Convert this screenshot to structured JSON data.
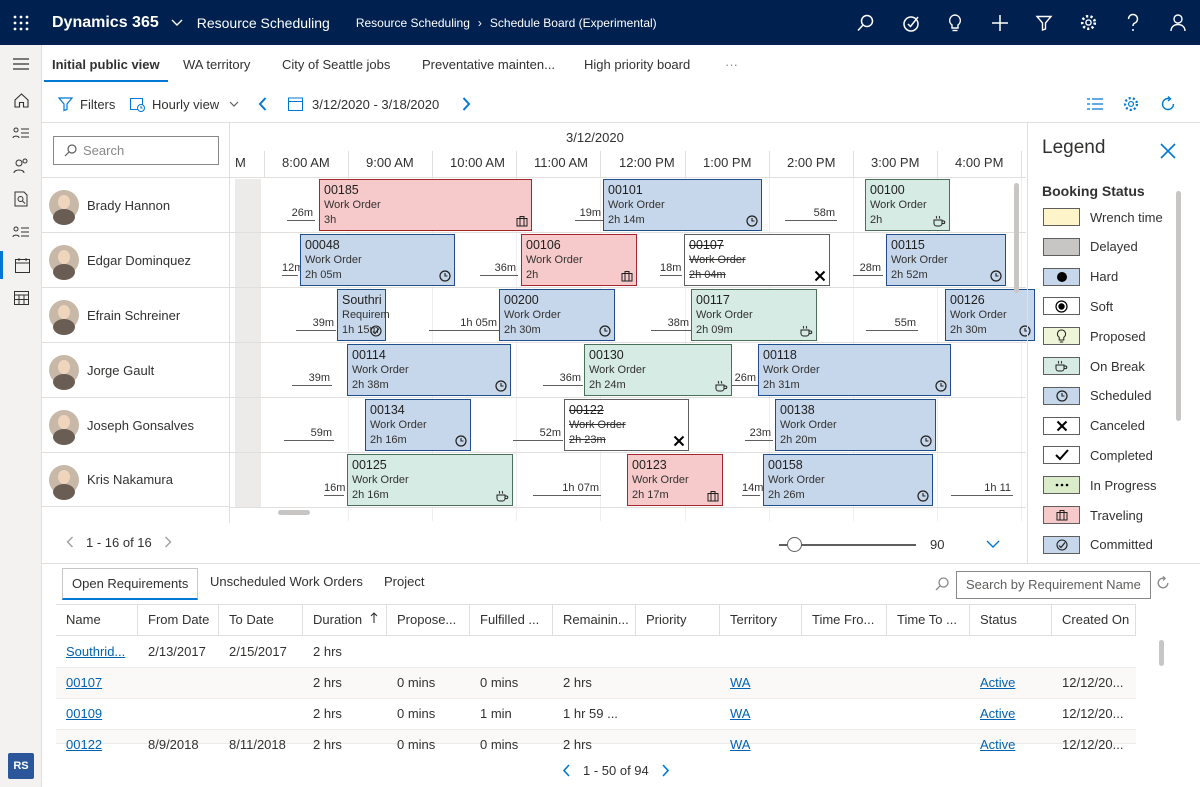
{
  "topbar": {
    "brand": "Dynamics 365",
    "app": "Resource Scheduling",
    "breadcrumb": [
      "Resource Scheduling",
      "Schedule Board (Experimental)"
    ],
    "icons": [
      "search-icon",
      "task-icon",
      "lightbulb-icon",
      "plus-icon",
      "filter-icon",
      "gear-icon",
      "help-icon",
      "user-icon"
    ]
  },
  "leftnav": {
    "badge": "RS"
  },
  "tabs": [
    "Initial public view",
    "WA territory",
    "City of Seattle jobs",
    "Preventative mainten...",
    "High priority board",
    "···"
  ],
  "toolbar": {
    "filters": "Filters",
    "view": "Hourly view",
    "date_range": "3/12/2020 - 3/18/2020"
  },
  "resources": {
    "search_placeholder": "Search",
    "items": [
      "Brady Hannon",
      "Edgar Dominquez",
      "Efrain Schreiner",
      "Jorge Gault",
      "Joseph Gonsalves",
      "Kris Nakamura"
    ],
    "pager": "1 - 16 of 16"
  },
  "board": {
    "date": "3/12/2020",
    "hours": [
      "M",
      "8:00 AM",
      "9:00 AM",
      "10:00 AM",
      "11:00 AM",
      "12:00 PM",
      "1:00 PM",
      "2:00 PM",
      "3:00 PM",
      "4:00 PM"
    ],
    "zoom": "90",
    "rows": [
      {
        "travel": [
          {
            "label": "26m"
          },
          {
            "label": "19m"
          },
          {
            "label": "58m"
          }
        ],
        "bookings": [
          {
            "id": "00185",
            "type": "Work Order",
            "duration": "3h",
            "status": "traveling"
          },
          {
            "id": "00101",
            "type": "Work Order",
            "duration": "2h 14m",
            "status": "scheduled"
          },
          {
            "id": "00100",
            "type": "Work Order",
            "duration": "2h",
            "status": "on-break"
          }
        ]
      },
      {
        "travel": [
          {
            "label": "12m"
          },
          {
            "label": "36m"
          },
          {
            "label": "18m"
          },
          {
            "label": "28m"
          }
        ],
        "bookings": [
          {
            "id": "00048",
            "type": "Work Order",
            "duration": "2h 05m",
            "status": "scheduled"
          },
          {
            "id": "00106",
            "type": "Work Order",
            "duration": "2h",
            "status": "traveling"
          },
          {
            "id": "00107",
            "type": "Work Order",
            "duration": "2h 04m",
            "status": "canceled"
          },
          {
            "id": "00115",
            "type": "Work Order",
            "duration": "2h 52m",
            "status": "scheduled"
          }
        ]
      },
      {
        "travel": [
          {
            "label": "39m"
          },
          {
            "label": "1h 05m"
          },
          {
            "label": "38m"
          },
          {
            "label": "55m"
          }
        ],
        "bookings": [
          {
            "id": "Southri",
            "type": "Requirem",
            "duration": "1h 15m",
            "status": "committed"
          },
          {
            "id": "00200",
            "type": "Work Order",
            "duration": "2h 30m",
            "status": "scheduled"
          },
          {
            "id": "00117",
            "type": "Work Order",
            "duration": "2h 09m",
            "status": "on-break"
          },
          {
            "id": "00126",
            "type": "Work Order",
            "duration": "2h 30m",
            "status": "scheduled"
          }
        ]
      },
      {
        "travel": [
          {
            "label": "39m"
          },
          {
            "label": "36m"
          },
          {
            "label": "26m"
          }
        ],
        "bookings": [
          {
            "id": "00114",
            "type": "Work Order",
            "duration": "2h 38m",
            "status": "scheduled"
          },
          {
            "id": "00130",
            "type": "Work Order",
            "duration": "2h 24m",
            "status": "on-break"
          },
          {
            "id": "00118",
            "type": "Work Order",
            "duration": "2h 31m",
            "status": "scheduled"
          }
        ]
      },
      {
        "travel": [
          {
            "label": "59m"
          },
          {
            "label": "52m"
          },
          {
            "label": "23m"
          }
        ],
        "bookings": [
          {
            "id": "00134",
            "type": "Work Order",
            "duration": "2h 16m",
            "status": "scheduled"
          },
          {
            "id": "00122",
            "type": "Work Order",
            "duration": "2h 23m",
            "status": "canceled"
          },
          {
            "id": "00138",
            "type": "Work Order",
            "duration": "2h 20m",
            "status": "scheduled"
          }
        ]
      },
      {
        "travel": [
          {
            "label": "16m"
          },
          {
            "label": "1h 07m"
          },
          {
            "label": "14m"
          },
          {
            "label": "1h 11"
          }
        ],
        "bookings": [
          {
            "id": "00125",
            "type": "Work Order",
            "duration": "2h 16m",
            "status": "on-break"
          },
          {
            "id": "00123",
            "type": "Work Order",
            "duration": "2h 17m",
            "status": "traveling"
          },
          {
            "id": "00158",
            "type": "Work Order",
            "duration": "2h 26m",
            "status": "scheduled"
          }
        ]
      }
    ]
  },
  "legend": {
    "title": "Legend",
    "subtitle": "Booking Status",
    "items": [
      {
        "label": "Wrench time",
        "color": "#fdf5c9",
        "icon": ""
      },
      {
        "label": "Delayed",
        "color": "#c8c6c4",
        "icon": ""
      },
      {
        "label": "Hard",
        "color": "#c7d7eb",
        "icon": "filled-circle-icon"
      },
      {
        "label": "Soft",
        "color": "#ffffff",
        "icon": "ring-icon"
      },
      {
        "label": "Proposed",
        "color": "#eef5d9",
        "icon": "lightbulb-icon"
      },
      {
        "label": "On Break",
        "color": "#d5ebe4",
        "icon": "coffee-icon"
      },
      {
        "label": "Scheduled",
        "color": "#c7d7eb",
        "icon": "clock-icon"
      },
      {
        "label": "Canceled",
        "color": "#ffffff",
        "icon": "x-icon"
      },
      {
        "label": "Completed",
        "color": "#ffffff",
        "icon": "check-icon"
      },
      {
        "label": "In Progress",
        "color": "#dbeccb",
        "icon": "ellipsis-icon"
      },
      {
        "label": "Traveling",
        "color": "#f6caca",
        "icon": "suitcase-icon"
      },
      {
        "label": "Committed",
        "color": "#c7d7eb",
        "icon": "committed-icon"
      }
    ]
  },
  "lower": {
    "tabs": [
      "Open Requirements",
      "Unscheduled Work Orders",
      "Project"
    ],
    "search_placeholder": "Search by Requirement Name",
    "columns": [
      "Name",
      "From Date",
      "To Date",
      "Duration",
      "Propose...",
      "Fulfilled ...",
      "Remainin...",
      "Priority",
      "Territory",
      "Time Fro...",
      "Time To ...",
      "Status",
      "Created On"
    ],
    "rows": [
      [
        "Southrid...",
        "2/13/2017",
        "2/15/2017",
        "2 hrs",
        "",
        "",
        "",
        "",
        "",
        "",
        "",
        "",
        ""
      ],
      [
        "00107",
        "",
        "",
        "2 hrs",
        "0 mins",
        "0 mins",
        "2 hrs",
        "",
        "WA",
        "",
        "",
        "Active",
        "12/12/20..."
      ],
      [
        "00109",
        "",
        "",
        "2 hrs",
        "0 mins",
        "1 min",
        "1 hr 59 ...",
        "",
        "WA",
        "",
        "",
        "Active",
        "12/12/20..."
      ],
      [
        "00122",
        "8/9/2018",
        "8/11/2018",
        "2 hrs",
        "0 mins",
        "0 mins",
        "2 hrs",
        "",
        "WA",
        "",
        "",
        "Active",
        "12/12/20..."
      ]
    ],
    "pager": "1 - 50 of 94"
  }
}
